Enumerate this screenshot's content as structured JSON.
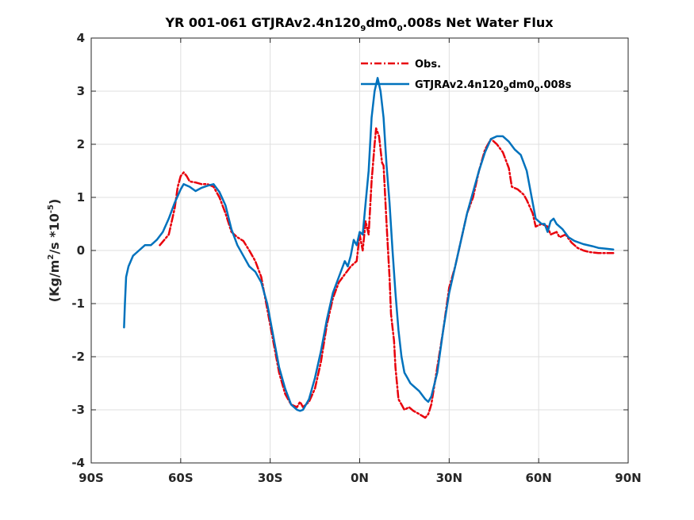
{
  "chart_data": {
    "type": "line",
    "title_parts": [
      "YR 001-061 GTJRAv2.4n120",
      "9",
      "dm0",
      "0",
      ".008s  Net Water Flux"
    ],
    "ylabel_parts": [
      "(Kg/m",
      "2",
      "/s *10",
      "-5",
      ")"
    ],
    "xlabel": "",
    "xlim": [
      -90,
      90
    ],
    "ylim": [
      -4,
      4
    ],
    "grid": true,
    "legend_position": "top-right",
    "x_ticks": [
      -90,
      -60,
      -30,
      0,
      30,
      60,
      90
    ],
    "x_tick_labels": [
      "90S",
      "60S",
      "30S",
      "0N",
      "30N",
      "60N",
      "90N"
    ],
    "y_ticks": [
      -4,
      -3,
      -2,
      -1,
      0,
      1,
      2,
      3,
      4
    ],
    "y_tick_labels": [
      "-4",
      "-3",
      "-2",
      "-1",
      "0",
      "1",
      "2",
      "3",
      "4"
    ],
    "series": [
      {
        "name_parts": [
          "Obs."
        ],
        "color": "#e8000b",
        "dash": "dashdot",
        "points": [
          [
            -67,
            0.1
          ],
          [
            -64,
            0.3
          ],
          [
            -62,
            0.8
          ],
          [
            -61,
            1.2
          ],
          [
            -60,
            1.4
          ],
          [
            -59,
            1.47
          ],
          [
            -58,
            1.4
          ],
          [
            -57,
            1.3
          ],
          [
            -55,
            1.28
          ],
          [
            -53,
            1.25
          ],
          [
            -51,
            1.25
          ],
          [
            -49,
            1.2
          ],
          [
            -47,
            1.0
          ],
          [
            -45,
            0.7
          ],
          [
            -43,
            0.35
          ],
          [
            -41,
            0.25
          ],
          [
            -39,
            0.18
          ],
          [
            -37,
            0.0
          ],
          [
            -35,
            -0.2
          ],
          [
            -33,
            -0.5
          ],
          [
            -31,
            -1.1
          ],
          [
            -29,
            -1.7
          ],
          [
            -27,
            -2.3
          ],
          [
            -25,
            -2.7
          ],
          [
            -23,
            -2.9
          ],
          [
            -21,
            -2.95
          ],
          [
            -20,
            -2.85
          ],
          [
            -19,
            -2.95
          ],
          [
            -17,
            -2.85
          ],
          [
            -15,
            -2.6
          ],
          [
            -13,
            -2.1
          ],
          [
            -11,
            -1.4
          ],
          [
            -9,
            -0.9
          ],
          [
            -7,
            -0.6
          ],
          [
            -5,
            -0.45
          ],
          [
            -3,
            -0.3
          ],
          [
            -1,
            -0.2
          ],
          [
            0,
            0.3
          ],
          [
            1,
            0.0
          ],
          [
            2,
            0.55
          ],
          [
            3,
            0.3
          ],
          [
            4,
            1.3
          ],
          [
            5,
            2.0
          ],
          [
            5.5,
            2.3
          ],
          [
            6.5,
            2.15
          ],
          [
            7.5,
            1.65
          ],
          [
            8,
            1.6
          ],
          [
            9,
            0.5
          ],
          [
            10,
            -0.5
          ],
          [
            10.5,
            -1.2
          ],
          [
            11.5,
            -1.7
          ],
          [
            12,
            -2.2
          ],
          [
            13,
            -2.8
          ],
          [
            14,
            -2.9
          ],
          [
            15,
            -3.0
          ],
          [
            16.5,
            -2.95
          ],
          [
            18,
            -3.02
          ],
          [
            20,
            -3.08
          ],
          [
            22,
            -3.15
          ],
          [
            23,
            -3.08
          ],
          [
            24,
            -2.9
          ],
          [
            26,
            -2.2
          ],
          [
            28,
            -1.5
          ],
          [
            30,
            -0.7
          ],
          [
            32,
            -0.3
          ],
          [
            34,
            0.2
          ],
          [
            36,
            0.7
          ],
          [
            38,
            1.0
          ],
          [
            40,
            1.5
          ],
          [
            42,
            1.9
          ],
          [
            44,
            2.1
          ],
          [
            45,
            2.05
          ],
          [
            46,
            2.0
          ],
          [
            48,
            1.85
          ],
          [
            50,
            1.55
          ],
          [
            51,
            1.2
          ],
          [
            53,
            1.15
          ],
          [
            55,
            1.05
          ],
          [
            56,
            0.95
          ],
          [
            58,
            0.7
          ],
          [
            59,
            0.45
          ],
          [
            61,
            0.5
          ],
          [
            63,
            0.45
          ],
          [
            64,
            0.3
          ],
          [
            66,
            0.35
          ],
          [
            67,
            0.25
          ],
          [
            69,
            0.3
          ],
          [
            71,
            0.15
          ],
          [
            73,
            0.05
          ],
          [
            75,
            0.0
          ],
          [
            77,
            -0.03
          ],
          [
            80,
            -0.05
          ],
          [
            85,
            -0.05
          ]
        ]
      },
      {
        "name_parts": [
          "GTJRAv2.4n120",
          "9",
          "dm0",
          "0",
          ".008s"
        ],
        "color": "#0072bd",
        "dash": "solid",
        "points": [
          [
            -79,
            -1.45
          ],
          [
            -78.7,
            -1.0
          ],
          [
            -78.3,
            -0.5
          ],
          [
            -77.5,
            -0.3
          ],
          [
            -76,
            -0.1
          ],
          [
            -74,
            0.0
          ],
          [
            -72,
            0.1
          ],
          [
            -70,
            0.1
          ],
          [
            -68,
            0.2
          ],
          [
            -66,
            0.35
          ],
          [
            -64,
            0.6
          ],
          [
            -62,
            0.9
          ],
          [
            -60,
            1.15
          ],
          [
            -59,
            1.25
          ],
          [
            -57,
            1.2
          ],
          [
            -55,
            1.12
          ],
          [
            -53,
            1.18
          ],
          [
            -51,
            1.22
          ],
          [
            -49,
            1.25
          ],
          [
            -47,
            1.1
          ],
          [
            -45,
            0.85
          ],
          [
            -43,
            0.4
          ],
          [
            -41,
            0.1
          ],
          [
            -39,
            -0.1
          ],
          [
            -37,
            -0.3
          ],
          [
            -35,
            -0.4
          ],
          [
            -33,
            -0.6
          ],
          [
            -31,
            -1.0
          ],
          [
            -29,
            -1.6
          ],
          [
            -27,
            -2.2
          ],
          [
            -25,
            -2.6
          ],
          [
            -23,
            -2.9
          ],
          [
            -21,
            -3.0
          ],
          [
            -20,
            -3.02
          ],
          [
            -19,
            -3.0
          ],
          [
            -17,
            -2.8
          ],
          [
            -15,
            -2.4
          ],
          [
            -13,
            -1.9
          ],
          [
            -11,
            -1.3
          ],
          [
            -9,
            -0.8
          ],
          [
            -7,
            -0.5
          ],
          [
            -5,
            -0.2
          ],
          [
            -4,
            -0.3
          ],
          [
            -3,
            -0.1
          ],
          [
            -2,
            0.2
          ],
          [
            -1,
            0.1
          ],
          [
            0,
            0.35
          ],
          [
            1,
            0.3
          ],
          [
            2,
            0.9
          ],
          [
            3,
            1.5
          ],
          [
            4,
            2.5
          ],
          [
            5,
            3.0
          ],
          [
            6,
            3.25
          ],
          [
            7,
            3.0
          ],
          [
            8,
            2.5
          ],
          [
            9,
            1.6
          ],
          [
            10,
            0.9
          ],
          [
            11,
            0.0
          ],
          [
            12,
            -0.8
          ],
          [
            13,
            -1.5
          ],
          [
            14,
            -2.0
          ],
          [
            15,
            -2.3
          ],
          [
            16,
            -2.4
          ],
          [
            17,
            -2.5
          ],
          [
            18,
            -2.55
          ],
          [
            20,
            -2.65
          ],
          [
            22,
            -2.8
          ],
          [
            23,
            -2.85
          ],
          [
            24,
            -2.75
          ],
          [
            26,
            -2.3
          ],
          [
            28,
            -1.5
          ],
          [
            30,
            -0.8
          ],
          [
            32,
            -0.3
          ],
          [
            34,
            0.2
          ],
          [
            36,
            0.7
          ],
          [
            38,
            1.1
          ],
          [
            40,
            1.5
          ],
          [
            42,
            1.85
          ],
          [
            44,
            2.1
          ],
          [
            46,
            2.15
          ],
          [
            48,
            2.15
          ],
          [
            50,
            2.05
          ],
          [
            52,
            1.9
          ],
          [
            54,
            1.8
          ],
          [
            56,
            1.5
          ],
          [
            58,
            0.9
          ],
          [
            59,
            0.6
          ],
          [
            61,
            0.5
          ],
          [
            62,
            0.5
          ],
          [
            63,
            0.35
          ],
          [
            64,
            0.55
          ],
          [
            65,
            0.6
          ],
          [
            66,
            0.5
          ],
          [
            68,
            0.4
          ],
          [
            70,
            0.25
          ],
          [
            72,
            0.18
          ],
          [
            75,
            0.12
          ],
          [
            78,
            0.08
          ],
          [
            80,
            0.05
          ],
          [
            85,
            0.02
          ]
        ]
      }
    ]
  }
}
